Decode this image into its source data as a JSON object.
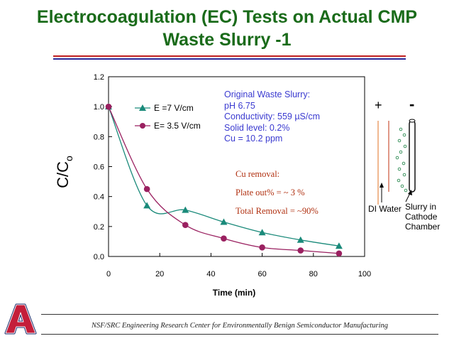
{
  "header": {
    "title_line1": "Electrocoagulation (EC) Tests on Actual CMP",
    "title_line2": "Waste Slurry -1"
  },
  "colors": {
    "title": "#1a6b1a",
    "rule_red": "#c0201f",
    "rule_blue": "#2a2a9a",
    "series1": "#1a8a7a",
    "series2": "#9a2060",
    "info_text": "#3a3ad0",
    "removal_text": "#b03010"
  },
  "chart_data": {
    "type": "line",
    "xlabel": "Time (min)",
    "ylabel_main": "C/C",
    "ylabel_sub": "o",
    "xlim": [
      0,
      100
    ],
    "ylim": [
      0,
      1.2
    ],
    "x_ticks": [
      "0",
      "20",
      "40",
      "60",
      "80",
      "100"
    ],
    "y_ticks": [
      "0.0",
      "0.2",
      "0.4",
      "0.6",
      "0.8",
      "1.0",
      "1.2"
    ],
    "grid": false,
    "legend_position": "top-left",
    "series": [
      {
        "name": "E =7 V/cm",
        "marker": "triangle",
        "x": [
          0,
          15,
          30,
          45,
          60,
          75,
          90
        ],
        "y": [
          1.0,
          0.34,
          0.31,
          0.23,
          0.16,
          0.11,
          0.07
        ]
      },
      {
        "name": "E= 3.5 V/cm",
        "marker": "circle",
        "x": [
          0,
          15,
          30,
          45,
          60,
          75,
          90
        ],
        "y": [
          1.0,
          0.45,
          0.21,
          0.12,
          0.06,
          0.04,
          0.02
        ]
      }
    ]
  },
  "info_box": {
    "line1": "Original Waste Slurry:",
    "line2": "pH 6.75",
    "line3": "Conductivity: 559 µS/cm",
    "line4": "Solid level: 0.2%",
    "line5": "Cu = 10.2 ppm"
  },
  "removal": {
    "heading": "Cu removal:",
    "plate_out": "Plate out% = ~ 3 %",
    "total": "Total Removal = ~90%"
  },
  "diagram": {
    "plus": "+",
    "minus": "-",
    "di_water": "DI Water",
    "slurry_line1": "Slurry in",
    "slurry_line2": "Cathode",
    "slurry_line3": "Chamber"
  },
  "footer": {
    "text": "NSF/SRC Engineering Research Center for Environmentally Benign Semiconductor Manufacturing",
    "logo_letter": "A"
  }
}
